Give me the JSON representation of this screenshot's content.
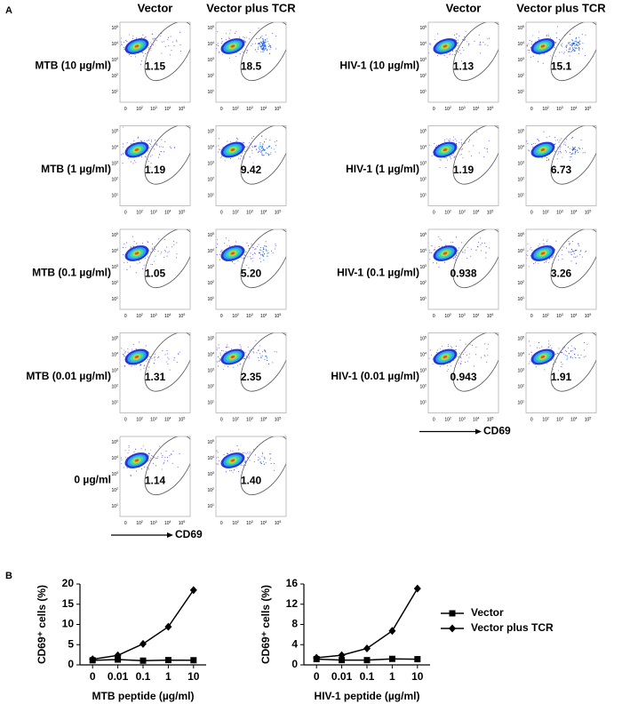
{
  "panel_a": {
    "label": "A",
    "axis_label": "CD69",
    "x_ticks": [
      {
        "base": "0"
      },
      {
        "base": "10",
        "exp": "2"
      },
      {
        "base": "10",
        "exp": "3"
      },
      {
        "base": "10",
        "exp": "4"
      },
      {
        "base": "10",
        "exp": "5"
      }
    ],
    "y_ticks": [
      {
        "base": "10",
        "exp": "5"
      },
      {
        "base": "10",
        "exp": "4"
      },
      {
        "base": "10",
        "exp": "3"
      },
      {
        "base": "10",
        "exp": "2"
      },
      {
        "base": "10",
        "exp": "1"
      }
    ],
    "groups": [
      {
        "columns": [
          "Vector",
          "Vector plus TCR"
        ],
        "rows": [
          {
            "label": "MTB (10 µg/ml)",
            "values": [
              "1.15",
              "18.5"
            ]
          },
          {
            "label": "MTB (1 µg/ml)",
            "values": [
              "1.19",
              "9.42"
            ]
          },
          {
            "label": "MTB (0.1 µg/ml)",
            "values": [
              "1.05",
              "5.20"
            ]
          },
          {
            "label": "MTB (0.01 µg/ml)",
            "values": [
              "1.31",
              "2.35"
            ]
          },
          {
            "label": "0 µg/ml",
            "values": [
              "1.14",
              "1.40"
            ]
          }
        ]
      },
      {
        "columns": [
          "Vector",
          "Vector plus TCR"
        ],
        "rows": [
          {
            "label": "HIV-1 (10 µg/ml)",
            "values": [
              "1.13",
              "15.1"
            ]
          },
          {
            "label": "HIV-1 (1 µg/ml)",
            "values": [
              "1.19",
              "6.73"
            ]
          },
          {
            "label": "HIV-1 (0.1 µg/ml)",
            "values": [
              "0.938",
              "3.26"
            ]
          },
          {
            "label": "HIV-1 (0.01 µg/ml)",
            "values": [
              "0.943",
              "1.91"
            ]
          }
        ]
      }
    ]
  },
  "panel_b": {
    "label": "B"
  },
  "chart_data": [
    {
      "type": "line",
      "ylabel": "CD69⁺ cells (%)",
      "xlabel": "MTB peptide (µg/ml)",
      "categories": [
        "0",
        "0.01",
        "0.1",
        "1",
        "10"
      ],
      "ylim": [
        0,
        20
      ],
      "yticks": [
        0,
        5,
        10,
        15,
        20
      ],
      "series": [
        {
          "color": "#000000",
          "marker": "square",
          "values": [
            1.14,
            1.31,
            1.05,
            1.19,
            1.15
          ]
        },
        {
          "color": "#000000",
          "marker": "diamond",
          "values": [
            1.4,
            2.35,
            5.2,
            9.42,
            18.5
          ]
        }
      ]
    },
    {
      "type": "line",
      "ylabel": "CD69⁺ cells (%)",
      "xlabel": "HIV-1 peptide (µg/ml)",
      "categories": [
        "0",
        "0.01",
        "0.1",
        "1",
        "10"
      ],
      "ylim": [
        0,
        16
      ],
      "yticks": [
        0,
        4,
        8,
        12,
        16
      ],
      "legend": "right",
      "series": [
        {
          "name": "Vector",
          "color": "#000000",
          "marker": "square",
          "values": [
            1.14,
            0.943,
            0.938,
            1.19,
            1.13
          ]
        },
        {
          "name": "Vector plus TCR",
          "color": "#000000",
          "marker": "diamond",
          "values": [
            1.4,
            1.91,
            3.26,
            6.73,
            15.1
          ]
        }
      ]
    }
  ]
}
